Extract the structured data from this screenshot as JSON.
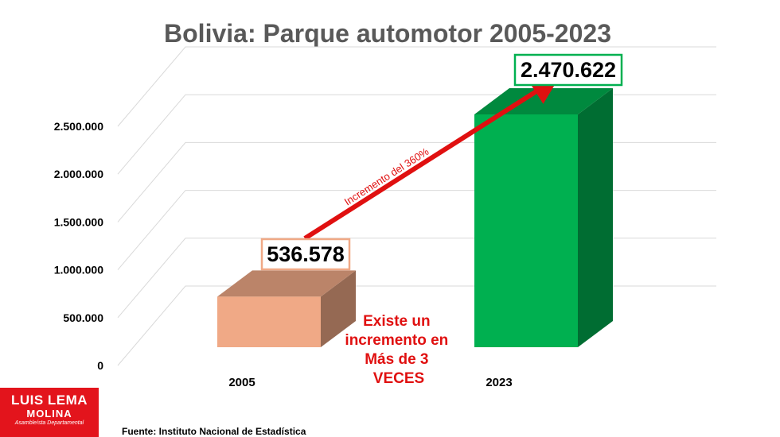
{
  "title": "Bolivia: Parque automotor 2005-2023",
  "source": "Fuente: Instituto Nacional de Estadística",
  "logo": {
    "line1": "LUIS LEMA",
    "line2": "MOLINA",
    "line3": "Asambleísta Departamental"
  },
  "chart_data": {
    "type": "bar",
    "categories": [
      "2005",
      "2023"
    ],
    "values": [
      536578,
      2470622
    ],
    "value_labels": [
      "536.578",
      "2.470.622"
    ],
    "ylim": [
      0,
      2500000
    ],
    "yticks": [
      "0",
      "500.000",
      "1.000.000",
      "1.500.000",
      "2.000.000",
      "2.500.000"
    ],
    "grid": true,
    "bar_colors": [
      "#f0a986",
      "#00b050"
    ],
    "arrow_label": "Incremento del 360%",
    "note": [
      "Existe un",
      "incremento en",
      "Más de 3",
      "VECES"
    ]
  },
  "colors": {
    "title": "#595959",
    "accent_red": "#e01010",
    "label_border_2005": "#f0a986",
    "label_border_2023": "#00b050",
    "logo_bg": "#e3141c"
  }
}
